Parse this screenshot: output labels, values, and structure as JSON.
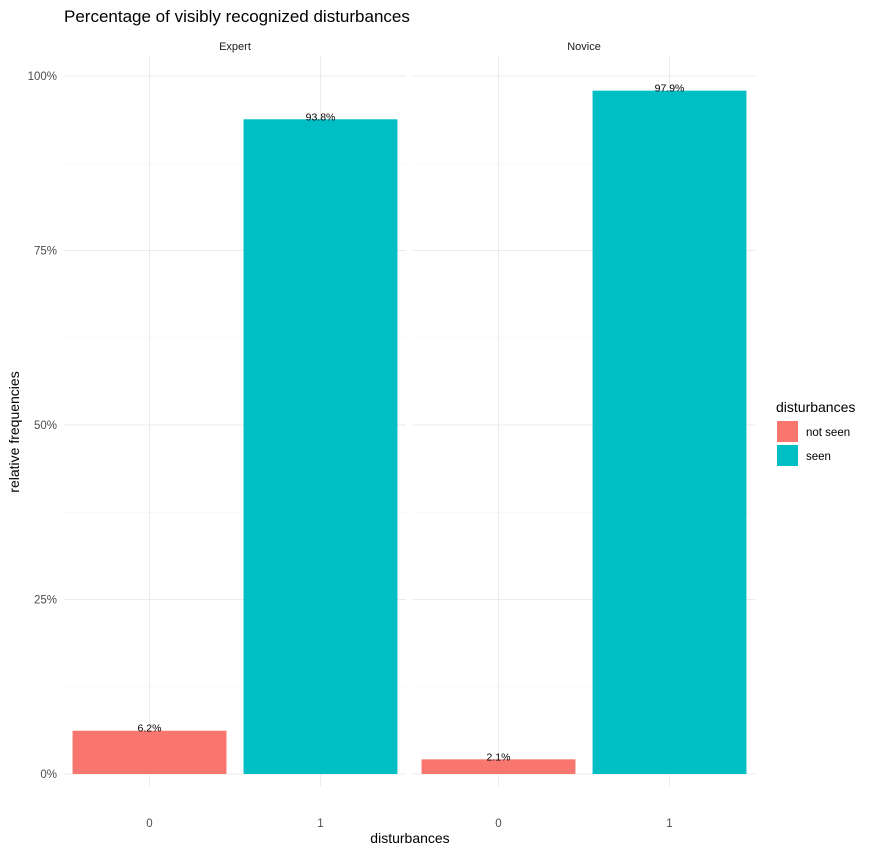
{
  "chart_data": {
    "type": "bar",
    "title": "Percentage of visibly recognized disturbances",
    "xlabel": "disturbances",
    "ylabel": "relative frequencies",
    "ylim": [
      0,
      100
    ],
    "yticks": [
      0,
      25,
      50,
      75,
      100
    ],
    "ytick_labels": [
      "0%",
      "25%",
      "50%",
      "75%",
      "100%"
    ],
    "grid": true,
    "legend_position": "right",
    "legend_title": "disturbances",
    "categories": [
      "0",
      "1"
    ],
    "series": [
      {
        "name": "not seen",
        "color": "#F8766D"
      },
      {
        "name": "seen",
        "color": "#00BFC4"
      }
    ],
    "panels": [
      {
        "facet": "Expert",
        "bars": [
          {
            "category": "0",
            "series": "not seen",
            "value": 6.2,
            "label": "6.2%"
          },
          {
            "category": "1",
            "series": "seen",
            "value": 93.8,
            "label": "93.8%"
          }
        ]
      },
      {
        "facet": "Novice",
        "bars": [
          {
            "category": "0",
            "series": "not seen",
            "value": 2.1,
            "label": "2.1%"
          },
          {
            "category": "1",
            "series": "seen",
            "value": 97.9,
            "label": "97.9%"
          }
        ]
      }
    ]
  }
}
